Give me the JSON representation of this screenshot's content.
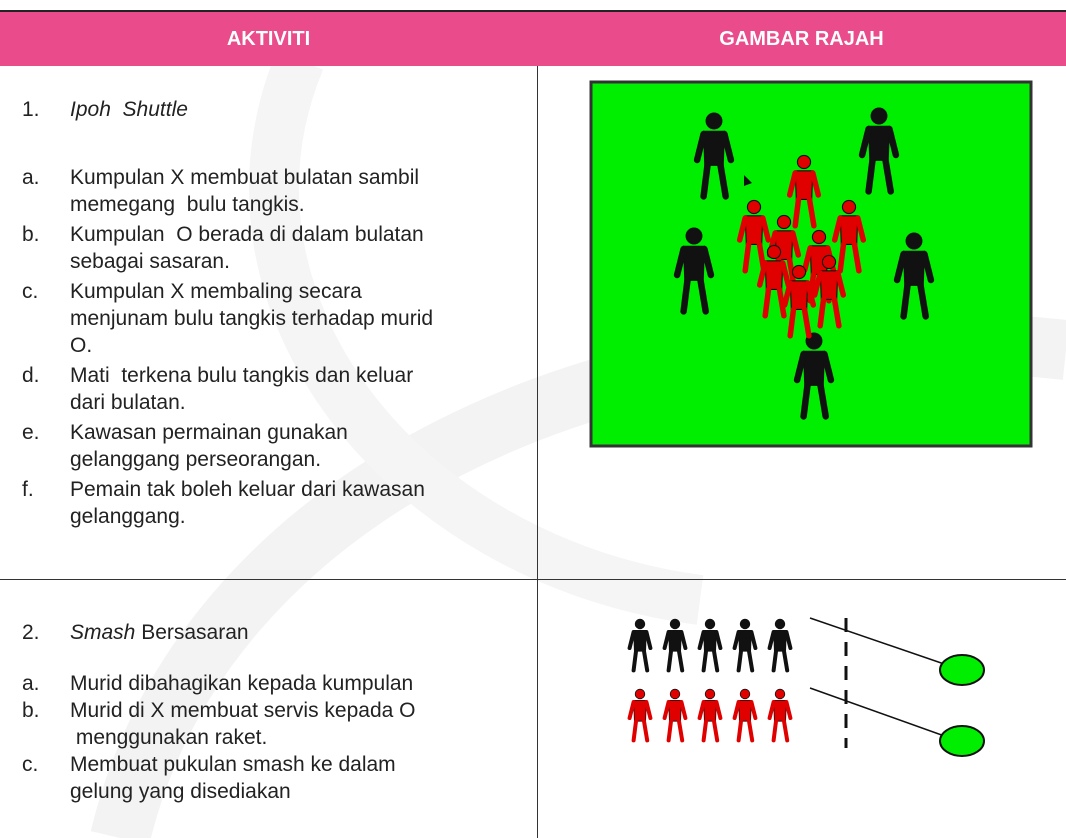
{
  "header": {
    "columns": [
      "AKTIVITI",
      "GAMBAR RAJAH"
    ]
  },
  "rows": [
    {
      "number": "1.",
      "title_italic": "Ipoh  Shuttle",
      "title_rest": "",
      "items": [
        {
          "letter": "a.",
          "lines": [
            "Kumpulan X membuat bulatan sambil",
            "memegang  bulu tangkis."
          ]
        },
        {
          "letter": "b.",
          "lines": [
            "Kumpulan  O berada di dalam bulatan",
            "sebagai sasaran."
          ]
        },
        {
          "letter": "c.",
          "lines": [
            "Kumpulan X membaling secara",
            "menjunam bulu tangkis terhadap murid",
            "O."
          ]
        },
        {
          "letter": "d.",
          "lines": [
            "Mati  terkena bulu tangkis dan keluar",
            "dari bulatan."
          ]
        },
        {
          "letter": "e.",
          "lines": [
            "Kawasan permainan gunakan",
            "gelanggang perseorangan."
          ]
        },
        {
          "letter": "f.",
          "lines": [
            "Pemain tak boleh keluar dari kawasan",
            "gelanggang."
          ]
        }
      ]
    },
    {
      "number": "2.",
      "title_italic": "Smash",
      "title_rest": " Bersasaran",
      "items": [
        {
          "letter": "a.",
          "lines": [
            "Murid dibahagikan kepada kumpulan"
          ]
        },
        {
          "letter": "b.",
          "lines": [
            "Murid di X membuat servis kepada O",
            " menggunakan raket."
          ]
        },
        {
          "letter": "c.",
          "lines": [
            "Membuat pukulan smash ke dalam",
            "gelung yang disediakan"
          ]
        }
      ]
    }
  ]
}
